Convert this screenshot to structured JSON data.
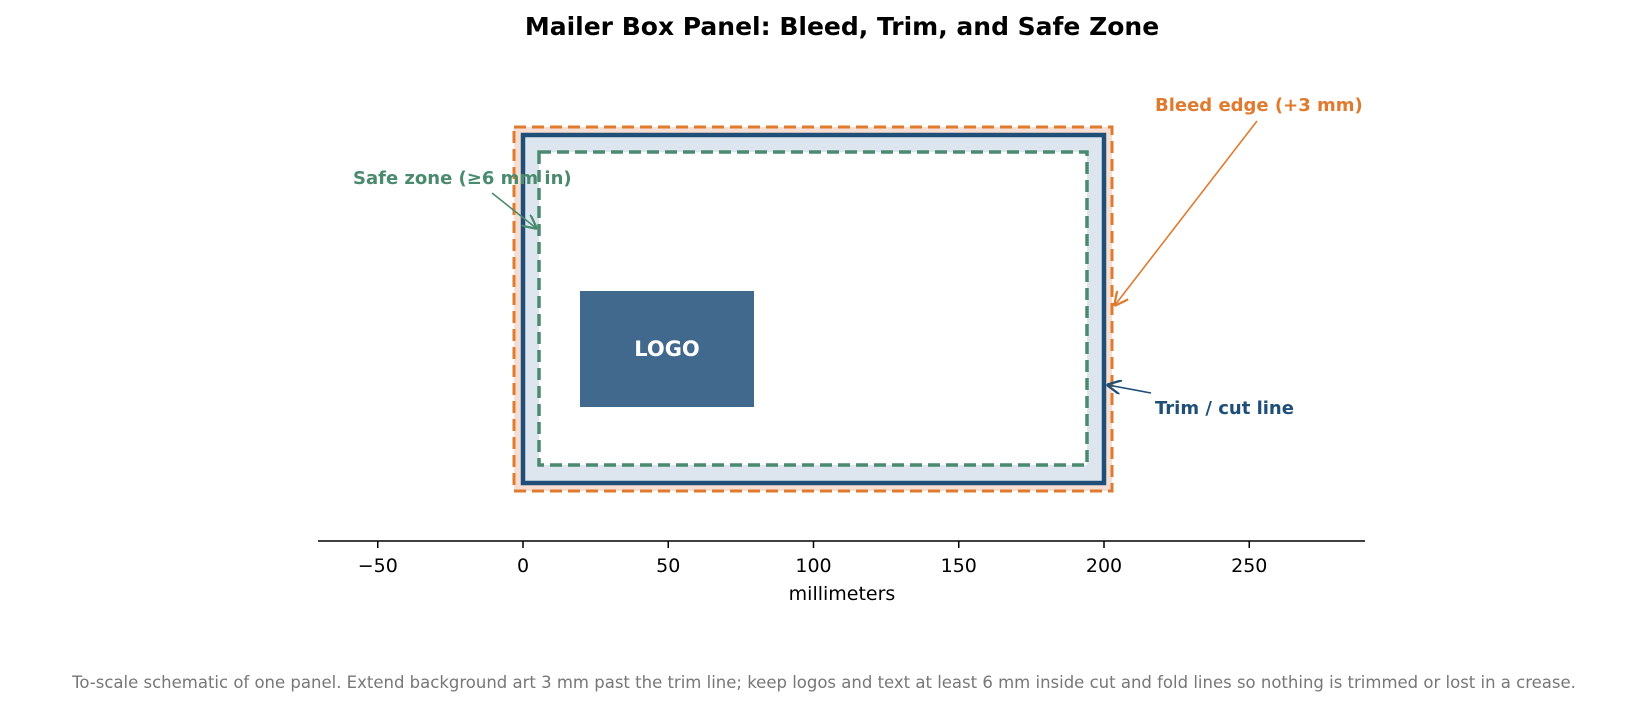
{
  "title": "Mailer Box Panel: Bleed, Trim, and Safe Zone",
  "caption": "To-scale schematic of one panel. Extend background art 3 mm past the trim line; keep logos and text at least 6 mm inside cut and fold lines so nothing is trimmed or lost in a crease.",
  "x_axis": {
    "label": "millimeters",
    "range": [
      -70,
      290
    ],
    "ticks": [
      -50,
      0,
      50,
      100,
      150,
      200,
      250
    ],
    "tick_labels": [
      "−50",
      "0",
      "50",
      "100",
      "150",
      "200",
      "250"
    ]
  },
  "panel": {
    "trim_width_mm": 200,
    "trim_height_mm": 120,
    "bleed_mm": 3,
    "safe_inset_mm": 6
  },
  "logo": {
    "text": "LOGO",
    "x_mm": [
      20,
      80
    ],
    "y_mm": [
      27,
      67
    ]
  },
  "annotations": {
    "bleed_label": "Bleed edge (+3 mm)",
    "trim_label": "Trim / cut line",
    "safe_label": "Safe zone (≥6 mm in)"
  },
  "colors": {
    "bleed": "#e07a2e",
    "bleed_fill": "#f6dfd2",
    "trim": "#1f4e79",
    "trim_fill": "#dde6ee",
    "safe": "#4a8a6e",
    "logo_fill": "#41698d",
    "axis": "#000000",
    "caption": "#777777"
  }
}
